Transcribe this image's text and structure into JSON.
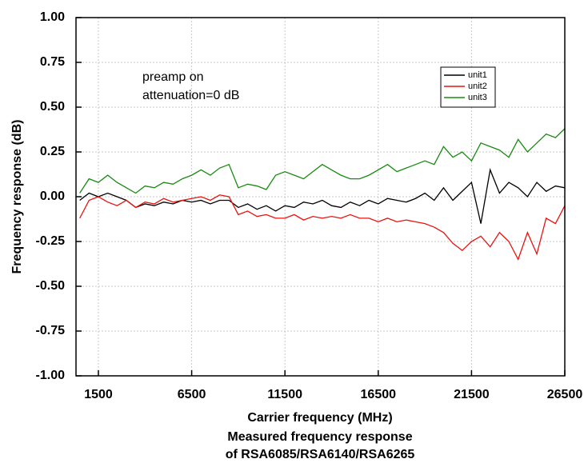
{
  "chart_data": {
    "type": "line",
    "title": "Measured frequency response",
    "subtitle": "of RSA6085/RSA6140/RSA6265",
    "x_label": "Carrier frequency (MHz)",
    "y_label": "Frequency response (dB)",
    "annotations": [
      "preamp on",
      "attenuation=0 dB"
    ],
    "legend": "top-right",
    "grid": true,
    "xlim": [
      300,
      26500
    ],
    "ylim": [
      -1,
      1
    ],
    "xticks": [
      1500,
      6500,
      11500,
      16500,
      21500,
      26500
    ],
    "yticks": [
      {
        "value": -1,
        "label": "-1.00"
      },
      {
        "value": -0.75,
        "label": "-0.75"
      },
      {
        "value": -0.5,
        "label": "-0.50"
      },
      {
        "value": -0.25,
        "label": "-0.25"
      },
      {
        "value": 0,
        "label": "0.00"
      },
      {
        "value": 0.25,
        "label": "0.25"
      },
      {
        "value": 0.5,
        "label": "0.50"
      },
      {
        "value": 0.75,
        "label": "0.75"
      },
      {
        "value": 1,
        "label": "1.00"
      }
    ],
    "x": [
      500,
      1000,
      1500,
      2000,
      2500,
      3000,
      3500,
      4000,
      4500,
      5000,
      5500,
      6000,
      6500,
      7000,
      7500,
      8000,
      8500,
      9000,
      9500,
      10000,
      10500,
      11000,
      11500,
      12000,
      12500,
      13000,
      13500,
      14000,
      14500,
      15000,
      15500,
      16000,
      16500,
      17000,
      17500,
      18000,
      18500,
      19000,
      19500,
      20000,
      20500,
      21000,
      21500,
      22000,
      22500,
      23000,
      23500,
      24000,
      24500,
      25000,
      25500,
      26000,
      26500
    ],
    "series": [
      {
        "name": "unit1",
        "color": "#000000",
        "values": [
          -0.02,
          0.02,
          0.0,
          0.02,
          0.0,
          -0.02,
          -0.06,
          -0.04,
          -0.05,
          -0.03,
          -0.04,
          -0.02,
          -0.03,
          -0.02,
          -0.04,
          -0.02,
          -0.02,
          -0.06,
          -0.04,
          -0.07,
          -0.05,
          -0.08,
          -0.05,
          -0.06,
          -0.03,
          -0.04,
          -0.02,
          -0.05,
          -0.06,
          -0.03,
          -0.05,
          -0.02,
          -0.04,
          -0.01,
          -0.02,
          -0.03,
          -0.01,
          0.02,
          -0.02,
          0.05,
          -0.02,
          0.03,
          0.08,
          -0.15,
          0.15,
          0.02,
          0.08,
          0.05,
          0.0,
          0.08,
          0.03,
          0.06,
          0.05
        ]
      },
      {
        "name": "unit2",
        "color": "#e8130f",
        "values": [
          -0.12,
          -0.02,
          0.0,
          -0.03,
          -0.05,
          -0.02,
          -0.06,
          -0.03,
          -0.04,
          -0.01,
          -0.03,
          -0.02,
          -0.01,
          0.0,
          -0.02,
          0.01,
          0.0,
          -0.1,
          -0.08,
          -0.11,
          -0.1,
          -0.12,
          -0.12,
          -0.1,
          -0.13,
          -0.11,
          -0.12,
          -0.11,
          -0.12,
          -0.1,
          -0.12,
          -0.12,
          -0.14,
          -0.12,
          -0.14,
          -0.13,
          -0.14,
          -0.15,
          -0.17,
          -0.2,
          -0.26,
          -0.3,
          -0.25,
          -0.22,
          -0.28,
          -0.2,
          -0.25,
          -0.35,
          -0.2,
          -0.32,
          -0.12,
          -0.15,
          -0.05
        ]
      },
      {
        "name": "unit3",
        "color": "#1a8a12",
        "values": [
          0.02,
          0.1,
          0.08,
          0.12,
          0.08,
          0.05,
          0.02,
          0.06,
          0.05,
          0.08,
          0.07,
          0.1,
          0.12,
          0.15,
          0.12,
          0.16,
          0.18,
          0.05,
          0.07,
          0.06,
          0.04,
          0.12,
          0.14,
          0.12,
          0.1,
          0.14,
          0.18,
          0.15,
          0.12,
          0.1,
          0.1,
          0.12,
          0.15,
          0.18,
          0.14,
          0.16,
          0.18,
          0.2,
          0.18,
          0.28,
          0.22,
          0.25,
          0.2,
          0.3,
          0.28,
          0.26,
          0.22,
          0.32,
          0.25,
          0.3,
          0.35,
          0.33,
          0.38
        ]
      }
    ]
  }
}
